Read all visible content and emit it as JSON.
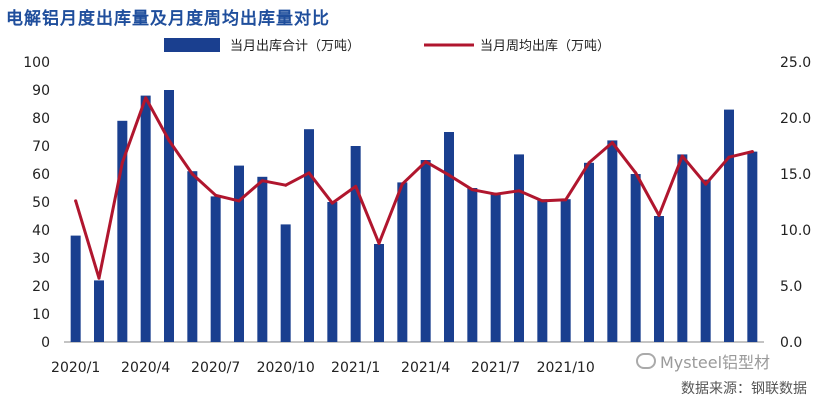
{
  "title": "电解铝月度出库量及月度周均出库量对比",
  "watermark": "Mysteel铝型材",
  "watermark_icon": "wechat-icon",
  "source": "数据来源：钢联数据",
  "colors": {
    "bar": "#1a3f8f",
    "line": "#b0162e",
    "title": "#1f4e9c"
  },
  "chart_data": {
    "type": "bar",
    "title": "电解铝月度出库量及月度周均出库量对比",
    "categories": [
      "2020/1",
      "2020/2",
      "2020/3",
      "2020/4",
      "2020/5",
      "2020/6",
      "2020/7",
      "2020/8",
      "2020/9",
      "2020/10",
      "2020/11",
      "2020/12",
      "2021/1",
      "2021/2",
      "2021/3",
      "2021/4",
      "2021/5",
      "2021/6",
      "2021/7",
      "2021/8",
      "2021/9",
      "2021/10",
      "2021/11",
      "2021/12",
      "2022/1",
      "2022/2",
      "2022/3",
      "2022/4",
      "2022/5",
      "2022/6"
    ],
    "x_tick_labels": [
      "2020/1",
      "2020/4",
      "2020/7",
      "2020/10",
      "2021/1",
      "2021/4",
      "2021/7",
      "2021/10"
    ],
    "x_tick_indices": [
      0,
      3,
      6,
      9,
      12,
      15,
      18,
      21
    ],
    "series": [
      {
        "name": "当月出库合计（万吨）",
        "type": "bar",
        "axis": "left",
        "values": [
          38,
          22,
          79,
          88,
          90,
          61,
          52,
          63,
          59,
          42,
          76,
          50,
          70,
          35,
          57,
          65,
          75,
          55,
          53,
          67,
          51,
          51,
          64,
          72,
          60,
          45,
          67,
          58,
          83,
          68
        ]
      },
      {
        "name": "当月周均出库（万吨）",
        "type": "line",
        "axis": "right",
        "values": [
          12.6,
          5.7,
          16.0,
          21.8,
          18.0,
          15.0,
          13.1,
          12.6,
          14.4,
          14.0,
          15.1,
          12.4,
          13.9,
          8.8,
          14.1,
          16.1,
          14.9,
          13.6,
          13.2,
          13.5,
          12.6,
          12.7,
          16.0,
          17.8,
          15.1,
          11.3,
          16.6,
          14.1,
          16.5,
          17.0
        ]
      }
    ],
    "y_left": {
      "min": 0,
      "max": 100,
      "ticks": [
        "0",
        "10",
        "20",
        "30",
        "40",
        "50",
        "60",
        "70",
        "80",
        "90",
        "100"
      ]
    },
    "y_right": {
      "min": 0,
      "max": 25,
      "ticks": [
        "0.0",
        "5.0",
        "10.0",
        "15.0",
        "20.0",
        "25.0"
      ]
    },
    "legend_position": "top"
  }
}
